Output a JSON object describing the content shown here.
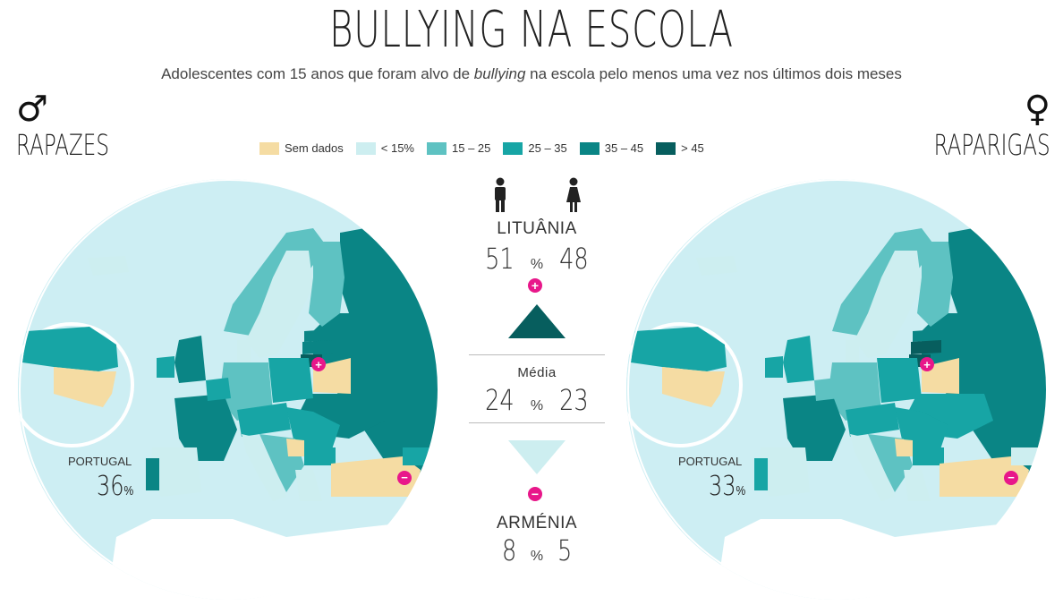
{
  "title": "BULLYING NA ESCOLA",
  "subtitle_pre": "Adolescentes com 15 anos que foram alvo de ",
  "subtitle_em": "bullying",
  "subtitle_post": " na escola pelo menos uma vez nos últimos dois meses",
  "left_panel": {
    "symbol": "♂",
    "label": "RAPAZES",
    "portugal_label": "PORTUGAL",
    "portugal_value": "36",
    "pct": "%"
  },
  "right_panel": {
    "symbol": "♀",
    "label": "RAPARIGAS",
    "portugal_label": "PORTUGAL",
    "portugal_value": "33",
    "pct": "%"
  },
  "legend": [
    {
      "label": "Sem dados",
      "color": "#f5dca3"
    },
    {
      "label": "< 15%",
      "color": "#cdeef0"
    },
    {
      "label": "15 – 25",
      "color": "#5ec2c2"
    },
    {
      "label": "25 – 35",
      "color": "#17a5a5"
    },
    {
      "label": "35 – 45",
      "color": "#0a8585"
    },
    {
      "label": "> 45",
      "color": "#075e5e"
    }
  ],
  "colors": {
    "sea": "#cdeef3",
    "nodata": "#f5dca3",
    "c1": "#cdeef0",
    "c2": "#5ec2c2",
    "c3": "#17a5a5",
    "c4": "#0a8585",
    "c5": "#075e5e",
    "badge": "#e8178a"
  },
  "stats": {
    "max": {
      "country": "LITUÂNIA",
      "boys": "51",
      "pct": "%",
      "girls": "48",
      "badge": "+"
    },
    "avg": {
      "country": "Média",
      "boys": "24",
      "pct": "%",
      "girls": "23"
    },
    "min": {
      "country": "ARMÉNIA",
      "boys": "8",
      "pct": "%",
      "girls": "5",
      "badge": "−"
    }
  },
  "icons": {
    "boy": "boy-icon",
    "girl": "girl-icon",
    "max": "triangle-up-icon",
    "min": "triangle-down-icon"
  }
}
